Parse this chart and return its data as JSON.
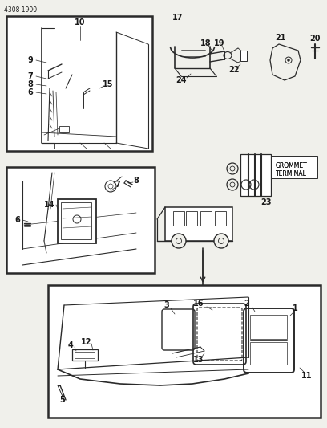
{
  "page_id": "4308 1900",
  "bg_color": "#f0f0eb",
  "white": "#ffffff",
  "line_color": "#2a2a2a",
  "text_color": "#1a1a1a",
  "grommet_label": "GROMMET\nTERMINAL",
  "fig_w": 4.08,
  "fig_h": 5.33,
  "dpi": 100
}
